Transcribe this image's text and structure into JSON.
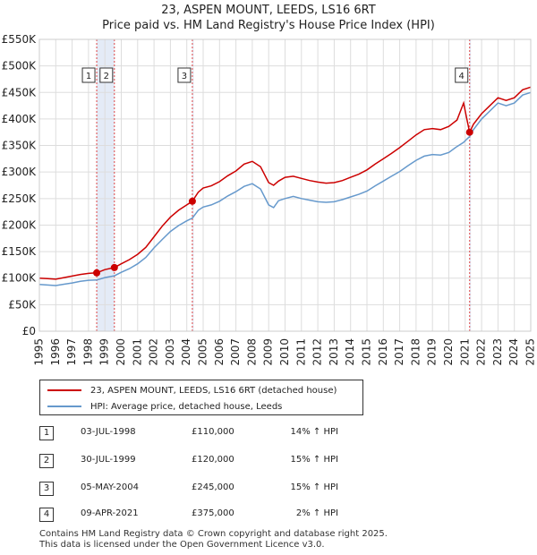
{
  "title_line1": "23, ASPEN MOUNT, LEEDS, LS16 6RT",
  "title_line2": "Price paid vs. HM Land Registry's House Price Index (HPI)",
  "colors": {
    "property": "#cc0000",
    "hpi": "#6699cc",
    "band": "#dde6f5",
    "vline": "#dd4444"
  },
  "chart_data": {
    "type": "line",
    "xlim": [
      1995,
      2025
    ],
    "ylim": [
      0,
      550000
    ],
    "yticks": [
      0,
      50000,
      100000,
      150000,
      200000,
      250000,
      300000,
      350000,
      400000,
      450000,
      500000,
      550000
    ],
    "ytick_labels": [
      "£0",
      "£50K",
      "£100K",
      "£150K",
      "£200K",
      "£250K",
      "£300K",
      "£350K",
      "£400K",
      "£450K",
      "£500K",
      "£550K"
    ],
    "xticks": [
      "1995",
      "1996",
      "1997",
      "1998",
      "1999",
      "2000",
      "2001",
      "2002",
      "2003",
      "2004",
      "2005",
      "2006",
      "2007",
      "2008",
      "2009",
      "2010",
      "2011",
      "2012",
      "2013",
      "2014",
      "2015",
      "2016",
      "2017",
      "2018",
      "2019",
      "2020",
      "2021",
      "2022",
      "2023",
      "2024",
      "2025"
    ],
    "shaded_bands": [
      [
        1998.5,
        1999.58
      ],
      [
        2004.34,
        2004.42
      ],
      [
        2021.27,
        2021.35
      ]
    ],
    "series": [
      {
        "name": "23, ASPEN MOUNT, LEEDS, LS16 6RT (detached house)",
        "color": "#cc0000",
        "x": [
          1995.0,
          1995.5,
          1996.0,
          1996.5,
          1997.0,
          1997.5,
          1998.0,
          1998.5,
          1999.0,
          1999.58,
          2000.0,
          2000.5,
          2001.0,
          2001.5,
          2002.0,
          2002.5,
          2003.0,
          2003.5,
          2004.0,
          2004.34,
          2004.7,
          2005.0,
          2005.5,
          2006.0,
          2006.5,
          2007.0,
          2007.5,
          2008.0,
          2008.5,
          2009.0,
          2009.3,
          2009.6,
          2010.0,
          2010.5,
          2011.0,
          2011.5,
          2012.0,
          2012.5,
          2013.0,
          2013.5,
          2014.0,
          2014.5,
          2015.0,
          2015.5,
          2016.0,
          2016.5,
          2017.0,
          2017.5,
          2018.0,
          2018.5,
          2019.0,
          2019.5,
          2020.0,
          2020.5,
          2020.9,
          2021.1,
          2021.27,
          2021.5,
          2022.0,
          2022.5,
          2023.0,
          2023.5,
          2024.0,
          2024.5,
          2025.0
        ],
        "values": [
          100000,
          99000,
          98000,
          101000,
          104000,
          107000,
          109000,
          110000,
          116000,
          120000,
          127000,
          135000,
          145000,
          158000,
          178000,
          198000,
          215000,
          228000,
          238000,
          245000,
          262000,
          270000,
          274000,
          282000,
          293000,
          302000,
          315000,
          320000,
          310000,
          280000,
          275000,
          283000,
          290000,
          292000,
          288000,
          284000,
          281000,
          279000,
          280000,
          284000,
          290000,
          296000,
          304000,
          315000,
          325000,
          335000,
          346000,
          358000,
          370000,
          380000,
          382000,
          380000,
          386000,
          398000,
          430000,
          400000,
          375000,
          390000,
          410000,
          425000,
          440000,
          435000,
          440000,
          455000,
          460000
        ]
      },
      {
        "name": "HPI: Average price, detached house, Leeds",
        "color": "#6699cc",
        "x": [
          1995.0,
          1995.5,
          1996.0,
          1996.5,
          1997.0,
          1997.5,
          1998.0,
          1998.5,
          1999.0,
          1999.58,
          2000.0,
          2000.5,
          2001.0,
          2001.5,
          2002.0,
          2002.5,
          2003.0,
          2003.5,
          2004.0,
          2004.34,
          2004.7,
          2005.0,
          2005.5,
          2006.0,
          2006.5,
          2007.0,
          2007.5,
          2008.0,
          2008.5,
          2009.0,
          2009.3,
          2009.6,
          2010.0,
          2010.5,
          2011.0,
          2011.5,
          2012.0,
          2012.5,
          2013.0,
          2013.5,
          2014.0,
          2014.5,
          2015.0,
          2015.5,
          2016.0,
          2016.5,
          2017.0,
          2017.5,
          2018.0,
          2018.5,
          2019.0,
          2019.5,
          2020.0,
          2020.5,
          2020.9,
          2021.1,
          2021.27,
          2021.5,
          2022.0,
          2022.5,
          2023.0,
          2023.5,
          2024.0,
          2024.5,
          2025.0
        ],
        "values": [
          88000,
          87000,
          86000,
          88500,
          91000,
          94000,
          96000,
          96500,
          101000,
          104500,
          111000,
          118000,
          127000,
          139000,
          157000,
          173000,
          188000,
          199000,
          208000,
          213000,
          228000,
          234000,
          238000,
          245000,
          255000,
          263000,
          273000,
          278000,
          268000,
          238000,
          233000,
          246000,
          250000,
          254000,
          250000,
          247000,
          244000,
          243000,
          244000,
          248000,
          253000,
          258000,
          264000,
          274000,
          283000,
          292000,
          301000,
          312000,
          322000,
          330000,
          333000,
          332000,
          337000,
          348000,
          356000,
          362000,
          367000,
          380000,
          400000,
          415000,
          430000,
          425000,
          430000,
          445000,
          450000
        ]
      }
    ],
    "markers": [
      {
        "id": "1",
        "x": 1998.5,
        "value": 110000
      },
      {
        "id": "2",
        "x": 1999.58,
        "value": 120000
      },
      {
        "id": "3",
        "x": 2004.34,
        "value": 245000
      },
      {
        "id": "4",
        "x": 2021.27,
        "value": 375000
      }
    ]
  },
  "legend": {
    "property_label": "23, ASPEN MOUNT, LEEDS, LS16 6RT (detached house)",
    "hpi_label": "HPI: Average price, detached house, Leeds"
  },
  "transactions": [
    {
      "num": "1",
      "date": "03-JUL-1998",
      "price": "£110,000",
      "hpi": "14% ↑ HPI"
    },
    {
      "num": "2",
      "date": "30-JUL-1999",
      "price": "£120,000",
      "hpi": "15% ↑ HPI"
    },
    {
      "num": "3",
      "date": "05-MAY-2004",
      "price": "£245,000",
      "hpi": "15% ↑ HPI"
    },
    {
      "num": "4",
      "date": "09-APR-2021",
      "price": "£375,000",
      "hpi": "2% ↑ HPI"
    }
  ],
  "footer_line1": "Contains HM Land Registry data © Crown copyright and database right 2025.",
  "footer_line2": "This data is licensed under the Open Government Licence v3.0."
}
